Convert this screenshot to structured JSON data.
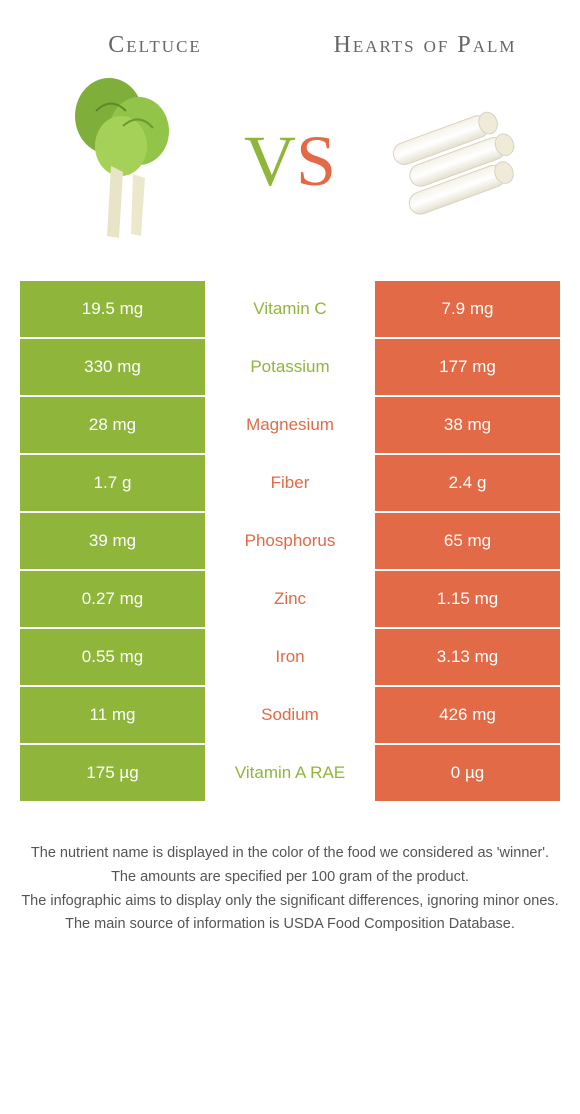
{
  "colors": {
    "green": "#8fb63b",
    "orange": "#e26a46",
    "text": "#555555",
    "bg": "#ffffff"
  },
  "header": {
    "left_title": "Celtuce",
    "right_title": "Hearts of Palm",
    "vs_v": "V",
    "vs_s": "S"
  },
  "rows": [
    {
      "left": "19.5 mg",
      "mid": "Vitamin C",
      "right": "7.9 mg",
      "winner": "green"
    },
    {
      "left": "330 mg",
      "mid": "Potassium",
      "right": "177 mg",
      "winner": "green"
    },
    {
      "left": "28 mg",
      "mid": "Magnesium",
      "right": "38 mg",
      "winner": "orange"
    },
    {
      "left": "1.7 g",
      "mid": "Fiber",
      "right": "2.4 g",
      "winner": "orange"
    },
    {
      "left": "39 mg",
      "mid": "Phosphorus",
      "right": "65 mg",
      "winner": "orange"
    },
    {
      "left": "0.27 mg",
      "mid": "Zinc",
      "right": "1.15 mg",
      "winner": "orange"
    },
    {
      "left": "0.55 mg",
      "mid": "Iron",
      "right": "3.13 mg",
      "winner": "orange"
    },
    {
      "left": "11 mg",
      "mid": "Sodium",
      "right": "426 mg",
      "winner": "orange"
    },
    {
      "left": "175 µg",
      "mid": "Vitamin A RAE",
      "right": "0 µg",
      "winner": "green"
    }
  ],
  "footer": {
    "l1": "The nutrient name is displayed in the color of the food we considered as 'winner'.",
    "l2": "The amounts are specified per 100 gram of the product.",
    "l3": "The infographic aims to display only the significant differences, ignoring minor ones.",
    "l4": "The main source of information is USDA Food Composition Database."
  }
}
